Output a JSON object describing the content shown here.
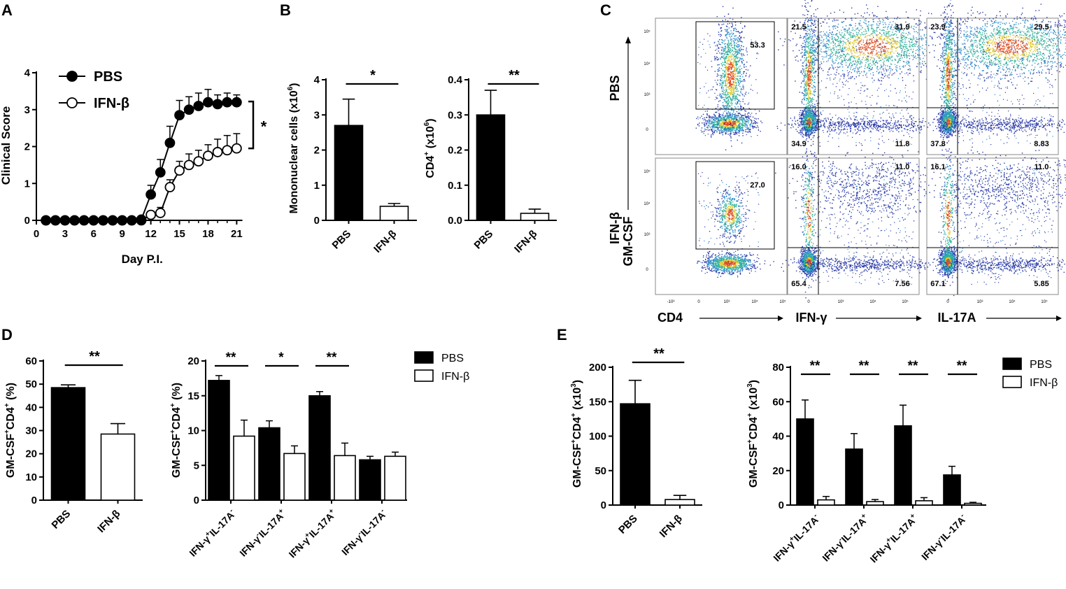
{
  "panel_letters": [
    "A",
    "B",
    "C",
    "D",
    "E"
  ],
  "chart_data": [
    {
      "id": "A",
      "type": "line",
      "xlabel": "Day P.I.",
      "ylabel": "Clinical Score",
      "xticks": [
        "0",
        "3",
        "6",
        "9",
        "12",
        "15",
        "18",
        "21"
      ],
      "yticks": [
        "0",
        "1",
        "2",
        "3",
        "4"
      ],
      "xlim": [
        0,
        22
      ],
      "ylim": [
        0,
        4
      ],
      "significance": "*",
      "series": [
        {
          "name": "PBS",
          "filled": true,
          "x": [
            1,
            2,
            3,
            4,
            5,
            6,
            7,
            8,
            9,
            10,
            11,
            12,
            13,
            14,
            15,
            16,
            17,
            18,
            19,
            20,
            21
          ],
          "y": [
            0,
            0,
            0,
            0,
            0,
            0,
            0,
            0,
            0,
            0,
            0.02,
            0.7,
            1.3,
            2.1,
            2.85,
            3.0,
            3.1,
            3.2,
            3.15,
            3.2,
            3.2
          ],
          "err": [
            0,
            0,
            0,
            0,
            0,
            0,
            0,
            0,
            0,
            0,
            0,
            0.25,
            0.35,
            0.45,
            0.4,
            0.35,
            0.35,
            0.35,
            0.25,
            0.25,
            0.2
          ]
        },
        {
          "name": "IFN-β",
          "filled": false,
          "x": [
            1,
            2,
            3,
            4,
            5,
            6,
            7,
            8,
            9,
            10,
            11,
            12,
            13,
            14,
            15,
            16,
            17,
            18,
            19,
            20,
            21
          ],
          "y": [
            0,
            0,
            0,
            0,
            0,
            0,
            0,
            0,
            0,
            0,
            0,
            0.15,
            0.2,
            0.9,
            1.35,
            1.5,
            1.6,
            1.75,
            1.85,
            1.9,
            1.95
          ],
          "err": [
            0,
            0,
            0,
            0,
            0,
            0,
            0,
            0,
            0,
            0,
            0,
            0.1,
            0.15,
            0.2,
            0.25,
            0.3,
            0.3,
            0.3,
            0.35,
            0.4,
            0.4
          ]
        }
      ]
    },
    {
      "id": "B1",
      "type": "bar",
      "ylabel_main": "Mononuclear cells (x10",
      "ylabel_sup": "6",
      "ylabel_end": ")",
      "categories": [
        "PBS",
        "IFN-β"
      ],
      "values": [
        2.7,
        0.4
      ],
      "errors": [
        0.75,
        0.08
      ],
      "fills": [
        "#000000",
        "#ffffff"
      ],
      "yticks": [
        "0",
        "1",
        "2",
        "3",
        "4"
      ],
      "ylim": [
        0,
        4
      ],
      "significance": [
        {
          "label": "*",
          "from": 0,
          "to": 1
        }
      ]
    },
    {
      "id": "B2",
      "type": "bar",
      "ylabel_main": "CD4",
      "ylabel_sup": "+",
      "ylabel_end": " (x10",
      "ylabel_sup2": "6",
      "ylabel_end2": ")",
      "categories": [
        "PBS",
        "IFN-β"
      ],
      "values": [
        0.3,
        0.02
      ],
      "errors": [
        0.07,
        0.012
      ],
      "fills": [
        "#000000",
        "#ffffff"
      ],
      "yticks": [
        "0.0",
        "0.1",
        "0.2",
        "0.3",
        "0.4"
      ],
      "ylim": [
        0,
        0.4
      ],
      "significance": [
        {
          "label": "**",
          "from": 0,
          "to": 1
        }
      ]
    },
    {
      "id": "C",
      "type": "flow-cytometry",
      "row_labels": [
        "PBS",
        "IFN-β"
      ],
      "y_axis_label": "GM-CSF",
      "x_axis_labels": [
        "CD4",
        "IFN-γ",
        "IL-17A"
      ],
      "gates": [
        {
          "row": "PBS",
          "plot": "CD4",
          "value": "53.3"
        },
        {
          "row": "PBS",
          "plot": "IFN-γ",
          "ul": "21.5",
          "ur": "31.9",
          "ll": "34.9",
          "lr": "11.8"
        },
        {
          "row": "PBS",
          "plot": "IL-17A",
          "ul": "23.9",
          "ur": "29.5",
          "ll": "37.8",
          "lr": "8.83"
        },
        {
          "row": "IFN-β",
          "plot": "CD4",
          "value": "27.0"
        },
        {
          "row": "IFN-β",
          "plot": "IFN-γ",
          "ul": "16.0",
          "ur": "11.0",
          "ll": "65.4",
          "lr": "7.56"
        },
        {
          "row": "IFN-β",
          "plot": "IL-17A",
          "ul": "16.1",
          "ur": "11.0",
          "ll": "67.1",
          "lr": "5.85"
        }
      ],
      "y_ticks": [
        "10⁵",
        "10⁴",
        "10³",
        "0"
      ],
      "x_ticks_cd4": [
        "-10³",
        "0",
        "10³",
        "10⁴",
        "10⁵"
      ],
      "x_ticks_other": [
        "0",
        "10³",
        "10⁴",
        "10⁵"
      ]
    },
    {
      "id": "D1",
      "type": "bar",
      "ylabel_main": "GM-CSF",
      "ylabel_sup": "+",
      "ylabel_end": "CD4",
      "ylabel_sup2": "+",
      "ylabel_end2": " (%)",
      "categories": [
        "PBS",
        "IFN-β"
      ],
      "values": [
        48.5,
        28.5
      ],
      "errors": [
        1.2,
        4.5
      ],
      "fills": [
        "#000000",
        "#ffffff"
      ],
      "yticks": [
        "0",
        "10",
        "20",
        "30",
        "40",
        "50",
        "60"
      ],
      "ylim": [
        0,
        60
      ],
      "significance": [
        {
          "label": "**",
          "from": 0,
          "to": 1
        }
      ]
    },
    {
      "id": "D2",
      "type": "bar",
      "ylabel_main": "GM-CSF",
      "ylabel_sup": "+",
      "ylabel_end": "CD4",
      "ylabel_sup2": "+",
      "ylabel_end2": " (%)",
      "categories": [
        {
          "a": "IFN-γ",
          "s1": "+",
          "b": "IL-17A",
          "s2": "-"
        },
        {
          "a": "IFN-γ",
          "s1": "-",
          "b": "IL-17A",
          "s2": "+"
        },
        {
          "a": "IFN-γ",
          "s1": "+",
          "b": "IL-17A",
          "s2": "+"
        },
        {
          "a": "IFN-γ",
          "s1": "-",
          "b": "IL-17A",
          "s2": "-"
        }
      ],
      "series": [
        {
          "name": "PBS",
          "fill": "#000000",
          "values": [
            17.2,
            10.4,
            15.0,
            5.8
          ],
          "errors": [
            0.7,
            1.0,
            0.6,
            0.5
          ]
        },
        {
          "name": "IFN-β",
          "fill": "#ffffff",
          "values": [
            9.2,
            6.7,
            6.4,
            6.3
          ],
          "errors": [
            2.3,
            1.1,
            1.8,
            0.6
          ]
        }
      ],
      "yticks": [
        "0",
        "5",
        "10",
        "15",
        "20"
      ],
      "ylim": [
        0,
        20
      ],
      "significance": [
        "**",
        "*",
        "**",
        ""
      ],
      "legend": [
        "PBS",
        "IFN-β"
      ]
    },
    {
      "id": "E1",
      "type": "bar",
      "ylabel_main": "GM-CSF",
      "ylabel_sup": "+",
      "ylabel_end": "CD4",
      "ylabel_sup2": "+",
      "ylabel_end2": " (x10",
      "ylabel_sup3": "3",
      "ylabel_end3": ")",
      "categories": [
        "PBS",
        "IFN-β"
      ],
      "values": [
        147,
        8
      ],
      "errors": [
        34,
        6
      ],
      "fills": [
        "#000000",
        "#ffffff"
      ],
      "yticks": [
        "0",
        "50",
        "100",
        "150",
        "200"
      ],
      "ylim": [
        0,
        200
      ],
      "significance": [
        {
          "label": "**",
          "from": 0,
          "to": 1
        }
      ]
    },
    {
      "id": "E2",
      "type": "bar",
      "ylabel_main": "GM-CSF",
      "ylabel_sup": "+",
      "ylabel_end": "CD4",
      "ylabel_sup2": "+",
      "ylabel_end2": " (x10",
      "ylabel_sup3": "3",
      "ylabel_end3": ")",
      "categories": [
        {
          "a": "IFN-γ",
          "s1": "+",
          "b": "IL-17A",
          "s2": "-"
        },
        {
          "a": "IFN-γ",
          "s1": "-",
          "b": "IL-17A",
          "s2": "+"
        },
        {
          "a": "IFN-γ",
          "s1": "+",
          "b": "IL-17A",
          "s2": "+"
        },
        {
          "a": "IFN-γ",
          "s1": "-",
          "b": "IL-17A",
          "s2": "-"
        }
      ],
      "series": [
        {
          "name": "PBS",
          "fill": "#000000",
          "values": [
            50,
            32.5,
            46,
            17.5
          ],
          "errors": [
            11,
            9,
            12,
            5
          ]
        },
        {
          "name": "IFN-β",
          "fill": "#ffffff",
          "values": [
            3,
            2,
            2.5,
            1
          ],
          "errors": [
            2,
            1.2,
            1.8,
            0.6
          ]
        }
      ],
      "yticks": [
        "0",
        "20",
        "40",
        "60",
        "80"
      ],
      "ylim": [
        0,
        80
      ],
      "significance": [
        "**",
        "**",
        "**",
        "**"
      ],
      "legend": [
        "PBS",
        "IFN-β"
      ]
    }
  ]
}
